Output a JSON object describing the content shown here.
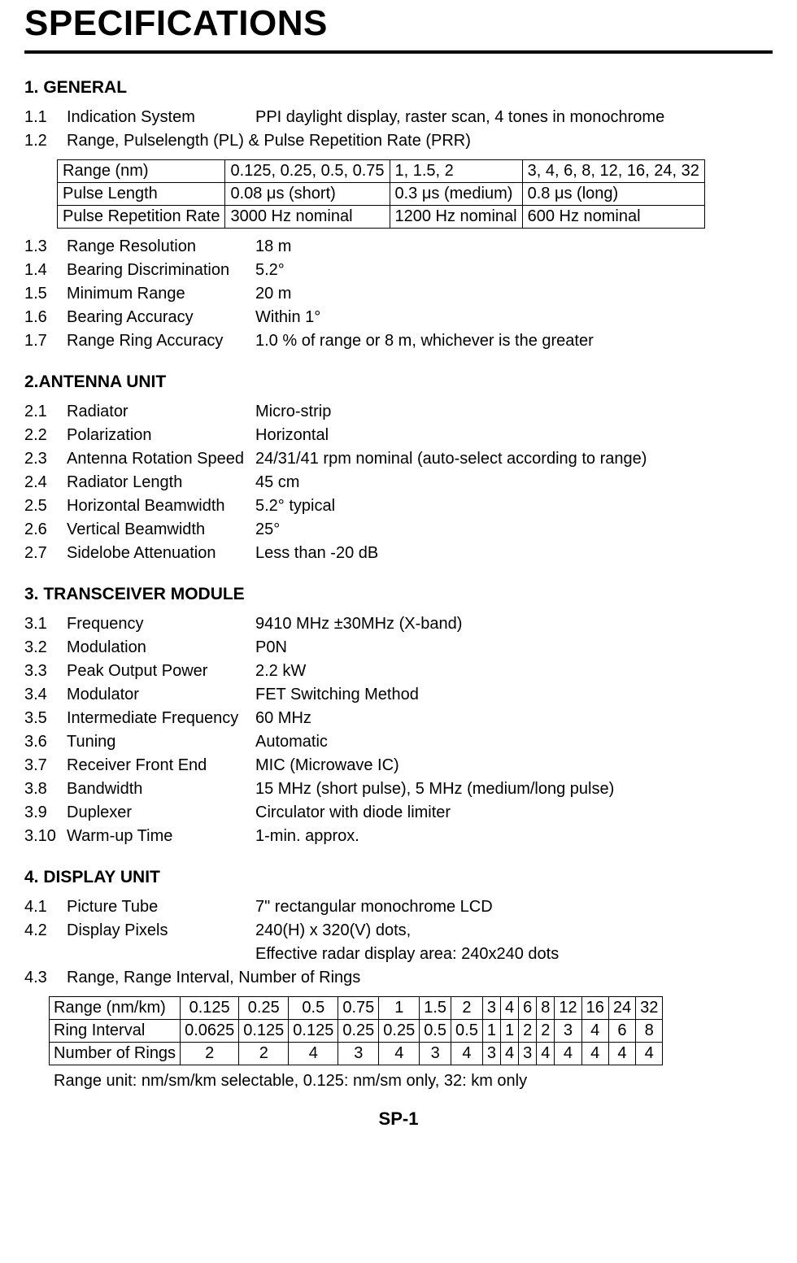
{
  "title": "SPECIFICATIONS",
  "sections": {
    "general": {
      "heading": "1. GENERAL",
      "items": [
        {
          "num": "1.1",
          "label": "Indication System",
          "val": "PPI daylight display, raster scan, 4 tones in monochrome"
        },
        {
          "num": "1.2",
          "label": "Range, Pulselength (PL) & Pulse Repetition Rate (PRR)",
          "val": ""
        },
        {
          "num": "1.3",
          "label": "Range Resolution",
          "val": "18 m"
        },
        {
          "num": "1.4",
          "label": "Bearing Discrimination",
          "val": "5.2°"
        },
        {
          "num": "1.5",
          "label": "Minimum Range",
          "val": "20 m"
        },
        {
          "num": "1.6",
          "label": "Bearing Accuracy",
          "val": "Within 1°"
        },
        {
          "num": "1.7",
          "label": "Range Ring Accuracy",
          "val": "1.0 % of range or 8 m, whichever is the greater"
        }
      ]
    },
    "antenna": {
      "heading": "2.ANTENNA UNIT",
      "items": [
        {
          "num": "2.1",
          "label": "Radiator",
          "val": "Micro-strip"
        },
        {
          "num": "2.2",
          "label": "Polarization",
          "val": "Horizontal"
        },
        {
          "num": "2.3",
          "label": "Antenna Rotation Speed",
          "val": "24/31/41 rpm nominal (auto-select according to range)"
        },
        {
          "num": "2.4",
          "label": "Radiator Length",
          "val": "45 cm"
        },
        {
          "num": "2.5",
          "label": "Horizontal Beamwidth",
          "val": "5.2° typical"
        },
        {
          "num": "2.6",
          "label": "Vertical Beamwidth",
          "val": "25°"
        },
        {
          "num": "2.7",
          "label": "Sidelobe Attenuation",
          "val": "Less than -20 dB"
        }
      ]
    },
    "transceiver": {
      "heading": "3. TRANSCEIVER MODULE",
      "items": [
        {
          "num": "3.1",
          "label": "Frequency",
          "val": "9410 MHz ±30MHz (X-band)"
        },
        {
          "num": "3.2",
          "label": "Modulation",
          "val": "P0N"
        },
        {
          "num": "3.3",
          "label": "Peak Output Power",
          "val": "2.2 kW"
        },
        {
          "num": "3.4",
          "label": "Modulator",
          "val": "FET Switching Method"
        },
        {
          "num": "3.5",
          "label": "Intermediate Frequency",
          "val": "60 MHz"
        },
        {
          "num": "3.6",
          "label": "Tuning",
          "val": "Automatic"
        },
        {
          "num": "3.7",
          "label": "Receiver Front End",
          "val": "MIC (Microwave IC)"
        },
        {
          "num": "3.8",
          "label": "Bandwidth",
          "val": "15 MHz (short pulse), 5 MHz (medium/long pulse)"
        },
        {
          "num": "3.9",
          "label": "Duplexer",
          "val": "Circulator with diode limiter"
        },
        {
          "num": "3.10",
          "label": "Warm-up Time",
          "val": "1-min. approx."
        }
      ]
    },
    "display": {
      "heading": "4. DISPLAY UNIT",
      "items": [
        {
          "num": "4.1",
          "label": "Picture Tube",
          "val": "7\" rectangular monochrome LCD"
        },
        {
          "num": "4.2",
          "label": "Display Pixels",
          "val": "240(H) x 320(V) dots,"
        },
        {
          "num": "",
          "label": "",
          "val": "Effective radar display area: 240x240 dots"
        },
        {
          "num": "4.3",
          "label": "Range, Range Interval, Number of Rings",
          "val": ""
        }
      ]
    }
  },
  "table1": {
    "rows": [
      [
        "Range (nm)",
        "0.125, 0.25, 0.5, 0.75",
        "1, 1.5, 2",
        "3, 4, 6, 8, 12, 16, 24, 32"
      ],
      [
        "Pulse Length",
        "0.08 μs (short)",
        "0.3 μs (medium)",
        "0.8 μs (long)"
      ],
      [
        "Pulse Repetition Rate",
        "3000 Hz nominal",
        "1200 Hz nominal",
        "600 Hz nominal"
      ]
    ]
  },
  "table2": {
    "headers": [
      "Range (nm/km)",
      "0.125",
      "0.25",
      "0.5",
      "0.75",
      "1",
      "1.5",
      "2",
      "3",
      "4",
      "6",
      "8",
      "12",
      "16",
      "24",
      "32"
    ],
    "rows": [
      [
        "Ring Interval",
        "0.0625",
        "0.125",
        "0.125",
        "0.25",
        "0.25",
        "0.5",
        "0.5",
        "1",
        "1",
        "2",
        "2",
        "3",
        "4",
        "6",
        "8"
      ],
      [
        "Number of Rings",
        "2",
        "2",
        "4",
        "3",
        "4",
        "3",
        "4",
        "3",
        "4",
        "3",
        "4",
        "4",
        "4",
        "4",
        "4"
      ]
    ]
  },
  "table2_note": "Range unit: nm/sm/km selectable, 0.125: nm/sm only, 32: km only",
  "page_number": "SP-1",
  "colors": {
    "text": "#000000",
    "background": "#ffffff",
    "border": "#000000"
  }
}
